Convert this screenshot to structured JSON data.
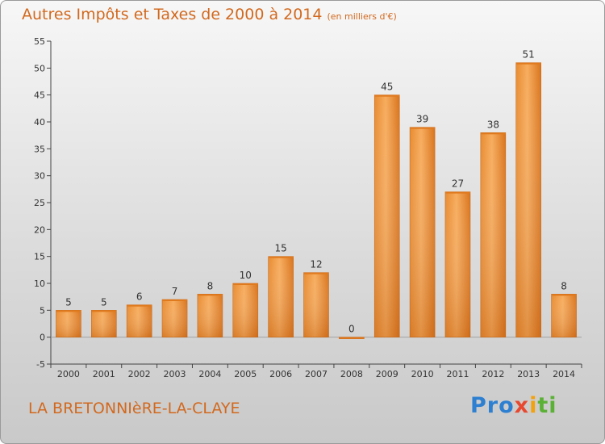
{
  "header": {
    "title": "Autres Impôts et Taxes de 2000 à 2014",
    "unit": "(en milliers d'€)"
  },
  "footer": {
    "commune": "LA BRETONNIèRE-LA-CLAYE",
    "logo": [
      "Pro",
      "x",
      "i",
      "ti"
    ]
  },
  "colors": {
    "accent": "#d2691e",
    "bar_light": "#f5a755",
    "bar_dark": "#d9781e"
  },
  "chart_data": {
    "type": "bar",
    "title": "Autres Impôts et Taxes de 2000 à 2014",
    "subtitle": "(en milliers d'€)",
    "categories": [
      "2000",
      "2001",
      "2002",
      "2003",
      "2004",
      "2005",
      "2006",
      "2007",
      "2008",
      "2009",
      "2010",
      "2011",
      "2012",
      "2013",
      "2014"
    ],
    "values": [
      5,
      5,
      6,
      7,
      8,
      10,
      15,
      12,
      0,
      45,
      39,
      27,
      38,
      51,
      8
    ],
    "ylim": [
      -5,
      55
    ],
    "yticks": [
      -5,
      0,
      5,
      10,
      15,
      20,
      25,
      30,
      35,
      40,
      45,
      50,
      55
    ],
    "grid": false,
    "legend": "none"
  }
}
